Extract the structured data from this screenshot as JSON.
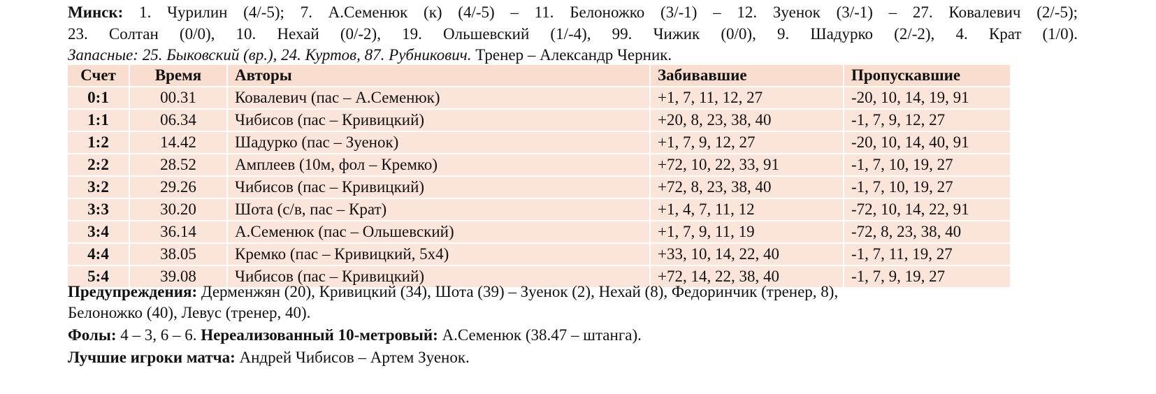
{
  "lineup": {
    "team_label": "Минск:",
    "line1": "1. Чурилин (4/-5); 7. А.Семенюк (к) (4/-5) – 11. Белоножко (3/-1) – 12. Зуенок (3/-1) – 27. Ковалевич (2/-5);",
    "line2": "23. Солтан (0/0), 10. Нехай (0/-2), 19. Ольшевский (1/-4), 99. Чижик (0/0), 9. Шадурко (2/-2), 4. Крат (1/0).",
    "subs": "Запасные: 25. Быковский (вр.), 24. Куртов, 87. Рубникович.",
    "coach": "Тренер – Александр Черник."
  },
  "table": {
    "headers": [
      "Счет",
      "Время",
      "Авторы",
      "Забивавшие",
      "Пропускавшие"
    ],
    "rows": [
      [
        "0:1",
        "00.31",
        "Ковалевич (пас – А.Семенюк)",
        "+1, 7, 11, 12, 27",
        "-20, 10, 14, 19, 91"
      ],
      [
        "1:1",
        "06.34",
        "Чибисов (пас – Кривицкий)",
        "+20, 8, 23, 38, 40",
        "-1, 7, 9, 12, 27"
      ],
      [
        "1:2",
        "14.42",
        "Шадурко (пас – Зуенок)",
        "+1, 7, 9, 12, 27",
        "-20, 10, 14, 40, 91"
      ],
      [
        "2:2",
        "28.52",
        "Амплеев (10м, фол – Кремко)",
        "+72, 10, 22, 33, 91",
        "-1, 7, 10, 19, 27"
      ],
      [
        "3:2",
        "29.26",
        "Чибисов (пас – Кривицкий)",
        "+72, 8, 23, 38, 40",
        "-1, 7, 10, 19, 27"
      ],
      [
        "3:3",
        "30.20",
        "Шота (с/в, пас – Крат)",
        "+1, 4, 7, 11, 12",
        "-72, 10, 14, 22, 91"
      ],
      [
        "3:4",
        "36.14",
        "А.Семенюк (пас – Ольшевский)",
        "+1, 7, 9, 11, 19",
        "-72, 8, 23, 38, 40"
      ],
      [
        "4:4",
        "38.05",
        "Кремко (пас – Кривицкий, 5х4)",
        "+33, 10, 14, 22, 40",
        "-1, 7, 11, 19, 27"
      ],
      [
        "5:4",
        "39.08",
        "Чибисов (пас – Кривицкий)",
        "+72, 14, 22, 38, 40",
        "-1, 7, 9, 19, 27"
      ]
    ],
    "colors": {
      "header_bg": "#f9ddcf",
      "row_bg": "#fbe4d9",
      "grid": "#ffffff"
    }
  },
  "footer": {
    "warnings_label": "Предупреждения:",
    "warnings_line1": "Дерменжян (20), Кривицкий (34), Шота (39) – Зуенок (2), Нехай (8), Федоринчик (тренер, 8),",
    "warnings_line2": "Белоножко (40), Левус (тренер, 40).",
    "fouls_label": "Фолы:",
    "fouls_value": "4 – 3, 6 – 6.",
    "missed_label": "Нереализованный 10-метровый:",
    "missed_value": "А.Семенюк (38.47 – штанга).",
    "best_label": "Лучшие игроки матча:",
    "best_value": "Андрей Чибисов – Артем Зуенок."
  }
}
